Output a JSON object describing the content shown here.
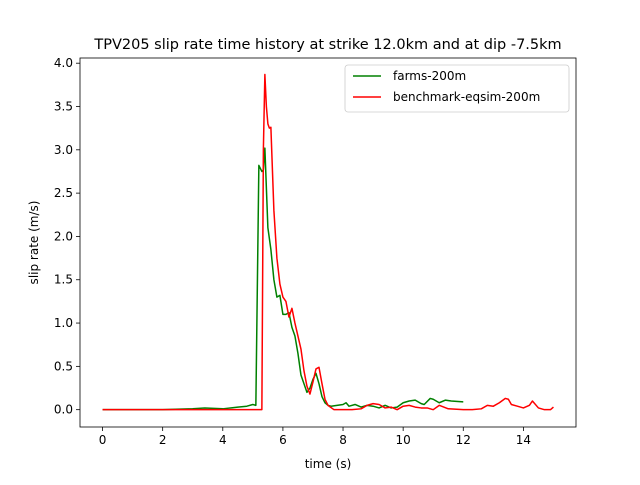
{
  "chart_data": {
    "type": "line",
    "title": "TPV205 slip rate time history at strike 12.0km and at dip -7.5km",
    "xlabel": "time (s)",
    "ylabel": "slip rate (m/s)",
    "xlim": [
      -0.75,
      15.75
    ],
    "ylim": [
      -0.2,
      4.06
    ],
    "xticks": [
      0,
      2,
      4,
      6,
      8,
      10,
      12,
      14
    ],
    "xtick_labels": [
      "0",
      "2",
      "4",
      "6",
      "8",
      "10",
      "12",
      "14"
    ],
    "yticks": [
      0.0,
      0.5,
      1.0,
      1.5,
      2.0,
      2.5,
      3.0,
      3.5,
      4.0
    ],
    "ytick_labels": [
      "0.0",
      "0.5",
      "1.0",
      "1.5",
      "2.0",
      "2.5",
      "3.0",
      "3.5",
      "4.0"
    ],
    "grid": false,
    "legend_position": "top-right",
    "series": [
      {
        "name": "farms-200m",
        "color": "#008000",
        "x": [
          0,
          1,
          2,
          3,
          3.4,
          4,
          4.5,
          4.8,
          5.0,
          5.1,
          5.2,
          5.3,
          5.35,
          5.4,
          5.5,
          5.6,
          5.7,
          5.8,
          5.9,
          6.0,
          6.1,
          6.2,
          6.3,
          6.4,
          6.5,
          6.6,
          6.7,
          6.8,
          6.9,
          7.0,
          7.1,
          7.2,
          7.3,
          7.4,
          7.5,
          7.6,
          7.8,
          8.0,
          8.1,
          8.2,
          8.4,
          8.6,
          8.8,
          9.0,
          9.2,
          9.4,
          9.6,
          9.8,
          10.0,
          10.2,
          10.4,
          10.6,
          10.7,
          10.9,
          11.0,
          11.2,
          11.4,
          11.6,
          12.0
        ],
        "y": [
          0,
          0,
          0,
          0.01,
          0.02,
          0.01,
          0.03,
          0.04,
          0.06,
          0.05,
          2.82,
          2.75,
          2.77,
          3.02,
          2.1,
          1.85,
          1.5,
          1.3,
          1.32,
          1.1,
          1.1,
          1.12,
          0.95,
          0.85,
          0.65,
          0.4,
          0.3,
          0.2,
          0.25,
          0.35,
          0.42,
          0.3,
          0.15,
          0.08,
          0.05,
          0.04,
          0.05,
          0.06,
          0.08,
          0.04,
          0.06,
          0.03,
          0.05,
          0.04,
          0.02,
          0.05,
          0.02,
          0.03,
          0.08,
          0.1,
          0.11,
          0.07,
          0.06,
          0.13,
          0.12,
          0.08,
          0.11,
          0.1,
          0.09
        ]
      },
      {
        "name": "benchmark-eqsim-200m",
        "color": "#ff0000",
        "x": [
          0,
          1,
          2,
          3,
          4,
          5.0,
          5.3,
          5.35,
          5.4,
          5.45,
          5.5,
          5.55,
          5.6,
          5.7,
          5.8,
          5.9,
          6.0,
          6.1,
          6.2,
          6.3,
          6.4,
          6.5,
          6.6,
          6.7,
          6.8,
          6.9,
          7.0,
          7.1,
          7.2,
          7.3,
          7.4,
          7.5,
          7.7,
          8.0,
          8.3,
          8.6,
          8.8,
          9.0,
          9.2,
          9.4,
          9.6,
          9.8,
          10.0,
          10.2,
          10.4,
          10.6,
          10.8,
          11.0,
          11.2,
          11.5,
          12.0,
          12.3,
          12.6,
          12.8,
          13.0,
          13.2,
          13.4,
          13.5,
          13.6,
          13.8,
          14.0,
          14.2,
          14.3,
          14.5,
          14.7,
          14.9,
          15.0
        ],
        "y": [
          0,
          0,
          0,
          0,
          0,
          0,
          0,
          3.0,
          3.87,
          3.5,
          3.3,
          3.25,
          3.26,
          2.3,
          1.75,
          1.45,
          1.3,
          1.25,
          1.07,
          1.17,
          1.0,
          0.85,
          0.7,
          0.45,
          0.27,
          0.18,
          0.32,
          0.47,
          0.49,
          0.3,
          0.12,
          0.05,
          0.0,
          0.0,
          0.0,
          0.01,
          0.05,
          0.07,
          0.06,
          0.02,
          0.03,
          0.0,
          0.04,
          0.05,
          0.03,
          0.02,
          0.02,
          0.0,
          0.05,
          0.01,
          0.0,
          0.0,
          0.01,
          0.05,
          0.04,
          0.08,
          0.13,
          0.12,
          0.06,
          0.04,
          0.02,
          0.05,
          0.1,
          0.02,
          0.0,
          0.0,
          0.03
        ]
      }
    ]
  }
}
